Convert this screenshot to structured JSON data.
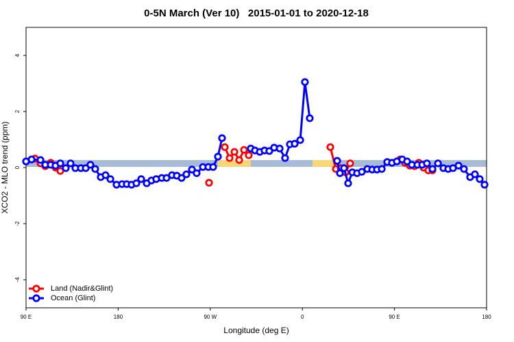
{
  "chart_data": {
    "type": "line",
    "title": "0-5N March (Ver 10)   2015-01-01 to 2020-12-18",
    "x_label": "Longitude (deg E)",
    "y_label": "XCO2 - MLO trend (ppm)",
    "xlim": [
      90,
      540
    ],
    "ylim": [
      -5,
      5
    ],
    "xticks": [
      {
        "value": 90,
        "label": "90 E"
      },
      {
        "value": 180,
        "label": "180"
      },
      {
        "value": 270,
        "label": "90 W"
      },
      {
        "value": 360,
        "label": "0"
      },
      {
        "value": 450,
        "label": "90 E"
      },
      {
        "value": 540,
        "label": "180"
      }
    ],
    "yticks": [
      -4,
      -2,
      0,
      2,
      4
    ],
    "legend": "bottom-left",
    "series": [
      {
        "name": "Land (Nadir&Glint)",
        "color": "#ff0000",
        "x": [
          98.7,
          104.1,
          108.8,
          114.1,
          118.8,
          123.5,
          200,
          268.8,
          276,
          284.2,
          288.9,
          293.6,
          298.3,
          303.0,
          307.6,
          345,
          387.3,
          392.7,
          397.4,
          402.1,
          406.7,
          430,
          455.6,
          460.3,
          465.0,
          469.7,
          473.7,
          478.4,
          483.1,
          487.1
        ],
        "values": [
          0.32,
          0.15,
          0.05,
          0.17,
          0.0,
          -0.12,
          null,
          -0.54,
          null,
          0.73,
          0.34,
          0.56,
          0.27,
          0.63,
          0.44,
          null,
          0.73,
          -0.05,
          -0.02,
          -0.17,
          0.15,
          null,
          0.29,
          0.17,
          0.07,
          0.05,
          0.17,
          0.0,
          -0.1,
          -0.1
        ]
      },
      {
        "name": "Ocean (Glint)",
        "color": "#0000ff",
        "x": [
          90,
          95.4,
          104.1,
          108.8,
          114.1,
          118.8,
          123.5,
          128.8,
          133.5,
          138.2,
          143.6,
          148.3,
          152.9,
          157.6,
          163.0,
          167.7,
          172.4,
          178.4,
          183.8,
          188.4,
          193.1,
          197.8,
          202.5,
          207.9,
          212.5,
          217.2,
          222.6,
          227.3,
          232.6,
          237.3,
          242.0,
          246.7,
          252.1,
          256.7,
          262.8,
          268.1,
          272.8,
          277.5,
          281.5,
          295,
          309.6,
          313.7,
          318.4,
          323.0,
          327.7,
          332.4,
          337.8,
          343.1,
          347.8,
          352.5,
          357.9,
          362.5,
          367.2,
          380,
          394.0,
          396.7,
          400.7,
          404.7,
          408.8,
          413.4,
          418.1,
          423.5,
          428.2,
          432.9,
          437.6,
          442.9,
          447.6,
          452.3,
          457.6,
          462.3,
          467.0,
          472.4,
          477.1,
          481.7,
          487.1,
          492.5,
          497.8,
          502.5,
          507.2,
          512.6,
          517.9,
          523.9,
          528.6,
          533.3,
          538.0
        ],
        "values": [
          0.22,
          0.29,
          0.27,
          0.1,
          0.1,
          0.07,
          0.15,
          -0.02,
          0.15,
          -0.02,
          -0.02,
          -0.02,
          0.1,
          -0.05,
          -0.34,
          -0.27,
          -0.41,
          -0.61,
          -0.59,
          -0.59,
          -0.61,
          -0.56,
          -0.41,
          -0.56,
          -0.46,
          -0.41,
          -0.37,
          -0.37,
          -0.27,
          -0.29,
          -0.37,
          -0.24,
          -0.07,
          -0.2,
          0.02,
          0.02,
          0.02,
          0.39,
          1.05,
          null,
          0.68,
          0.61,
          0.56,
          0.61,
          0.59,
          0.71,
          0.68,
          0.34,
          0.83,
          0.85,
          0.98,
          3.05,
          1.76,
          null,
          0.24,
          -0.2,
          -0.02,
          -0.56,
          -0.17,
          -0.2,
          -0.15,
          -0.05,
          -0.07,
          -0.07,
          -0.05,
          0.2,
          0.17,
          0.22,
          0.29,
          0.22,
          0.1,
          0.1,
          0.1,
          0.15,
          -0.05,
          0.15,
          -0.02,
          -0.05,
          -0.02,
          0.07,
          -0.05,
          -0.34,
          -0.24,
          -0.41,
          -0.61
        ]
      }
    ]
  }
}
